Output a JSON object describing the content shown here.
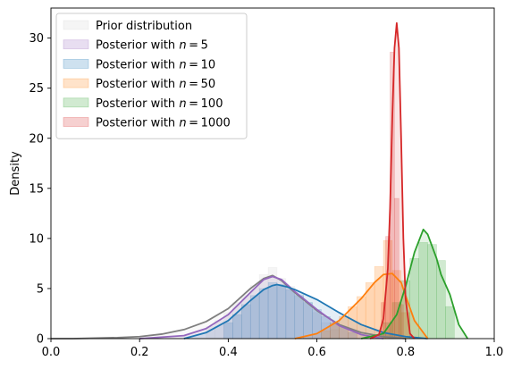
{
  "chart_data": {
    "type": "area",
    "ylabel": "Density",
    "xlabel": "",
    "xlim": [
      0.0,
      1.0
    ],
    "ylim": [
      0,
      33
    ],
    "xticks": [
      "0.0",
      "0.2",
      "0.4",
      "0.6",
      "0.8",
      "1.0"
    ],
    "yticks": [
      "0",
      "5",
      "10",
      "15",
      "20",
      "25",
      "30"
    ],
    "legend_position": "top-left",
    "grid": false,
    "series": [
      {
        "name": "Prior distribution",
        "color": "#7f7f7f",
        "fill_color": "#d0d0d0",
        "kde": {
          "x": [
            0.0,
            0.05,
            0.1,
            0.15,
            0.2,
            0.25,
            0.3,
            0.35,
            0.4,
            0.45,
            0.48,
            0.5,
            0.52,
            0.55,
            0.6,
            0.65,
            0.7,
            0.75,
            0.8
          ],
          "y": [
            0.0,
            0.0,
            0.05,
            0.1,
            0.2,
            0.45,
            0.9,
            1.7,
            3.0,
            5.0,
            6.0,
            6.3,
            5.8,
            4.6,
            2.8,
            1.4,
            0.6,
            0.2,
            0.0
          ]
        },
        "hist": {
          "x": [
            0.36,
            0.38,
            0.4,
            0.42,
            0.44,
            0.46,
            0.48,
            0.5,
            0.52,
            0.54,
            0.56,
            0.58,
            0.6,
            0.62,
            0.64
          ],
          "y": [
            1.2,
            1.8,
            2.6,
            3.6,
            4.3,
            5.3,
            6.4,
            7.1,
            6.0,
            5.2,
            4.4,
            3.6,
            2.6,
            1.6,
            0.9
          ]
        }
      },
      {
        "name": "Posterior with n = 5",
        "color": "#9467bd",
        "fill_color": "#9467bd",
        "kde": {
          "x": [
            0.2,
            0.3,
            0.35,
            0.4,
            0.45,
            0.48,
            0.5,
            0.52,
            0.55,
            0.6,
            0.65,
            0.7,
            0.75
          ],
          "y": [
            0.0,
            0.3,
            1.0,
            2.4,
            4.6,
            5.9,
            6.2,
            5.9,
            4.7,
            2.9,
            1.3,
            0.4,
            0.0
          ]
        }
      },
      {
        "name": "Posterior with n = 10",
        "color": "#1f77b4",
        "fill_color": "#1f77b4",
        "kde": {
          "x": [
            0.3,
            0.35,
            0.4,
            0.45,
            0.48,
            0.5,
            0.51,
            0.53,
            0.55,
            0.6,
            0.65,
            0.7,
            0.75,
            0.8,
            0.85
          ],
          "y": [
            0.0,
            0.6,
            1.8,
            3.8,
            4.9,
            5.3,
            5.4,
            5.2,
            4.9,
            3.9,
            2.6,
            1.4,
            0.6,
            0.2,
            0.0
          ]
        },
        "hist": {
          "x": [
            0.4,
            0.42,
            0.44,
            0.46,
            0.48,
            0.5,
            0.52,
            0.54,
            0.56,
            0.58,
            0.6,
            0.62,
            0.64,
            0.66,
            0.68
          ],
          "y": [
            1.6,
            2.4,
            3.4,
            4.3,
            5.0,
            5.6,
            5.4,
            4.9,
            4.3,
            3.6,
            2.9,
            2.2,
            1.6,
            1.1,
            0.6
          ]
        }
      },
      {
        "name": "Posterior with n = 50",
        "color": "#ff7f0e",
        "fill_color": "#ff7f0e",
        "kde": {
          "x": [
            0.55,
            0.6,
            0.65,
            0.7,
            0.73,
            0.75,
            0.77,
            0.79,
            0.8,
            0.82,
            0.85
          ],
          "y": [
            0.0,
            0.5,
            1.8,
            4.0,
            5.6,
            6.4,
            6.5,
            5.6,
            4.3,
            1.8,
            0.0
          ]
        },
        "hist": {
          "x": [
            0.62,
            0.64,
            0.66,
            0.68,
            0.7,
            0.72,
            0.74,
            0.76,
            0.78,
            0.8
          ],
          "y": [
            0.8,
            1.6,
            2.2,
            3.2,
            4.2,
            5.6,
            7.2,
            9.8,
            6.8,
            2.6
          ]
        }
      },
      {
        "name": "Posterior with n = 100",
        "color": "#2ca02c",
        "fill_color": "#2ca02c",
        "kde": {
          "x": [
            0.7,
            0.75,
            0.78,
            0.8,
            0.82,
            0.84,
            0.85,
            0.87,
            0.88,
            0.9,
            0.92,
            0.94
          ],
          "y": [
            0.0,
            0.5,
            2.4,
            5.2,
            8.6,
            10.9,
            10.4,
            8.0,
            6.4,
            4.4,
            1.4,
            0.0
          ]
        },
        "hist": {
          "x": [
            0.76,
            0.78,
            0.8,
            0.82,
            0.84,
            0.86,
            0.88,
            0.9
          ],
          "y": [
            1.6,
            3.6,
            5.8,
            8.0,
            9.6,
            9.4,
            7.8,
            3.2
          ]
        }
      },
      {
        "name": "Posterior with n = 1000",
        "color": "#d62728",
        "fill_color": "#d62728",
        "kde": {
          "x": [
            0.72,
            0.74,
            0.75,
            0.76,
            0.765,
            0.77,
            0.775,
            0.78,
            0.785,
            0.79,
            0.795,
            0.8,
            0.81,
            0.82
          ],
          "y": [
            0.0,
            0.4,
            2.0,
            7.0,
            13.0,
            22.0,
            29.0,
            31.5,
            29.0,
            20.0,
            10.0,
            4.0,
            0.5,
            0.0
          ]
        },
        "hist": {
          "x": [
            0.75,
            0.76,
            0.77,
            0.78,
            0.79
          ],
          "y": [
            3.6,
            10.2,
            28.6,
            14.0,
            3.4
          ]
        }
      }
    ]
  }
}
